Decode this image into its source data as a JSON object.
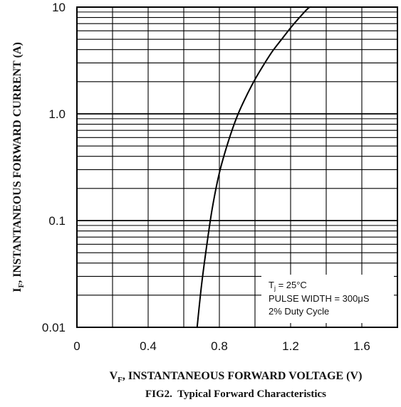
{
  "chart_data": {
    "type": "line",
    "caption": "FIG2.  Typical Forward Characteristics",
    "xlabel": {
      "symbol": "V",
      "subscript": "F",
      "text": ", INSTANTANEOUS  FORWARD VOLTAGE (V)"
    },
    "ylabel": {
      "symbol": "I",
      "subscript": "F",
      "text": ", INSTANTANEOUS FORWARD CURRENT (A)"
    },
    "xlim": [
      0,
      1.8
    ],
    "ylim": [
      0.01,
      10
    ],
    "yscale": "log",
    "grid": true,
    "xticks": [
      {
        "value": 0,
        "label": "0"
      },
      {
        "value": 0.4,
        "label": "0.4"
      },
      {
        "value": 0.8,
        "label": "0.8"
      },
      {
        "value": 1.2,
        "label": "1.2"
      },
      {
        "value": 1.6,
        "label": "1.6"
      }
    ],
    "yticks": [
      {
        "value": 0.01,
        "label": "0.01"
      },
      {
        "value": 0.1,
        "label": "0.1"
      },
      {
        "value": 1,
        "label": "1.0"
      },
      {
        "value": 10,
        "label": "10"
      }
    ],
    "series": [
      {
        "x": [
          0.675,
          0.7,
          0.73,
          0.76,
          0.8,
          0.85,
          0.9,
          0.95,
          1.0,
          1.05,
          1.1,
          1.15,
          1.2,
          1.25,
          1.3,
          1.32
        ],
        "y": [
          0.01,
          0.025,
          0.06,
          0.13,
          0.28,
          0.55,
          0.95,
          1.45,
          2.1,
          2.9,
          3.9,
          5.0,
          6.4,
          8.0,
          9.8,
          10.0
        ]
      }
    ],
    "annotation": {
      "tj": {
        "symbol": "T",
        "subscript": "j",
        "text": " = 25°C"
      },
      "lines": [
        "PULSE WIDTH = 300μS",
        "2% Duty Cycle"
      ]
    }
  }
}
